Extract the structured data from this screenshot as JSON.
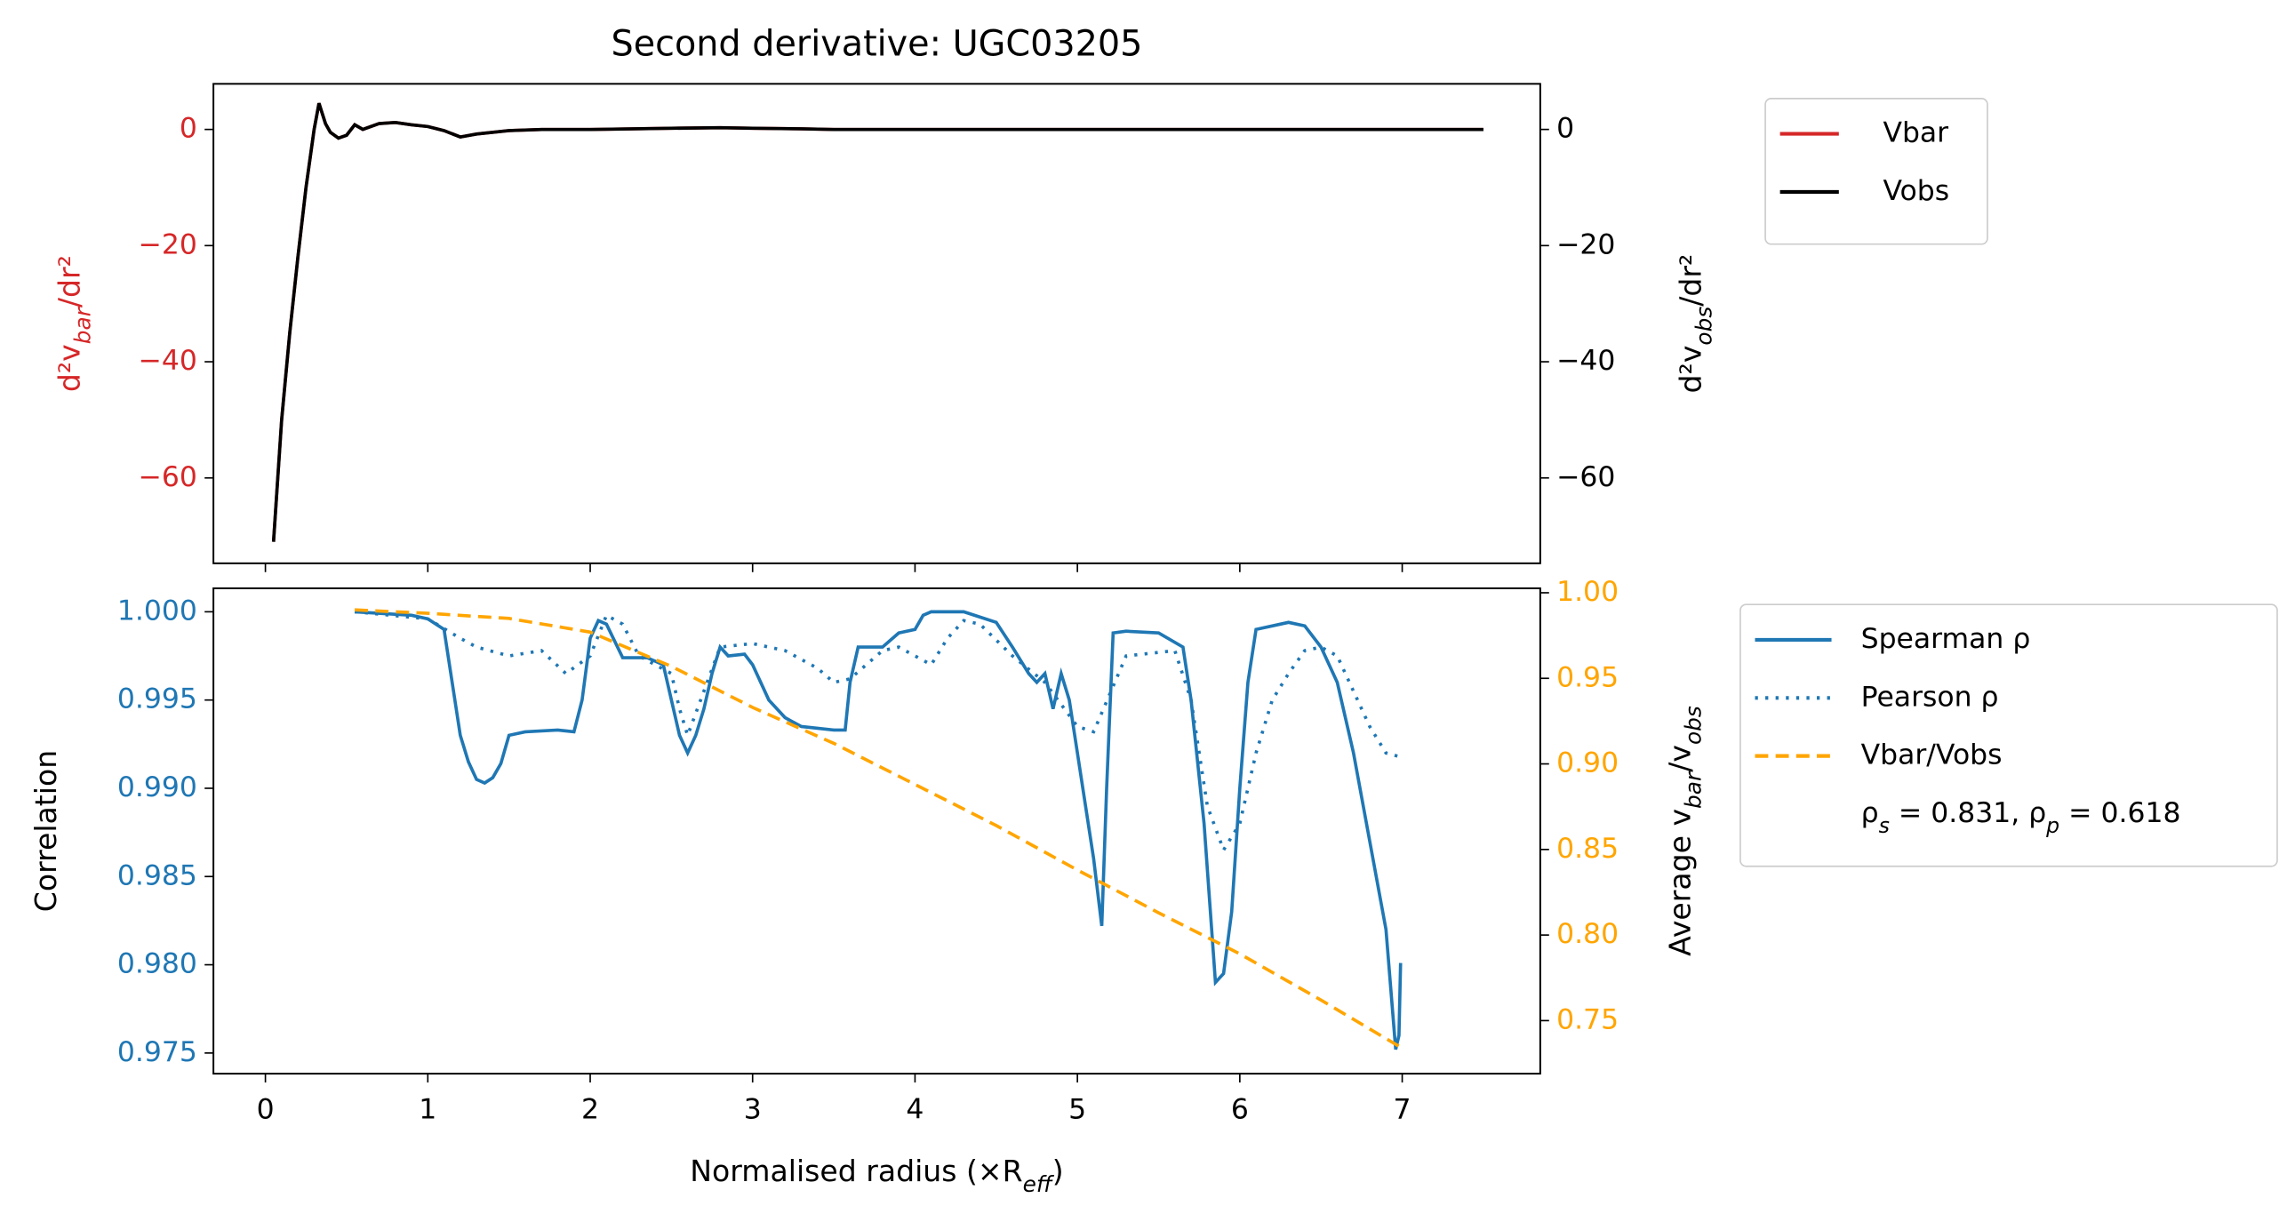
{
  "chart_data": [
    {
      "type": "line",
      "title": "Second derivative: UGC03205",
      "ylabel": "d²v_{bar}/dr²",
      "ylabel_color": "#d62728",
      "y2label": "d²v_{obs}/dr²",
      "xlim": [
        -0.32,
        7.85
      ],
      "xticks": [
        0,
        1,
        2,
        3,
        4,
        5,
        6,
        7
      ],
      "show_xticklabels": false,
      "ylim": [
        -74.7,
        7.85
      ],
      "yticks": [
        {
          "value": -60,
          "label": "−60"
        },
        {
          "value": -40,
          "label": "−40"
        },
        {
          "value": -20,
          "label": "−20"
        },
        0
      ],
      "y2lim": [
        -74.7,
        7.85
      ],
      "y2ticks": [
        {
          "value": -60,
          "label": "−60"
        },
        {
          "value": -40,
          "label": "−40"
        },
        {
          "value": -20,
          "label": "−20"
        },
        0
      ],
      "x": [
        0.05,
        0.1,
        0.15,
        0.2,
        0.25,
        0.3,
        0.33,
        0.37,
        0.4,
        0.45,
        0.5,
        0.55,
        0.6,
        0.7,
        0.8,
        0.9,
        1.0,
        1.1,
        1.2,
        1.3,
        1.5,
        1.7,
        2.0,
        2.5,
        2.8,
        3.0,
        3.3,
        3.5,
        4.0,
        5.0,
        6.0,
        7.0,
        7.5
      ],
      "series": [
        {
          "name": "Vbar",
          "color": "#d62728",
          "style": "solid",
          "values": [
            -71,
            -50,
            -35,
            -22,
            -10,
            0,
            4.5,
            1,
            -0.5,
            -1.5,
            -1,
            0.8,
            0,
            1,
            1.2,
            0.8,
            0.5,
            -0.2,
            -1.3,
            -0.8,
            -0.2,
            0,
            0,
            0.2,
            0.3,
            0.2,
            0.1,
            0,
            0,
            0,
            0,
            0,
            0
          ]
        },
        {
          "name": "Vobs",
          "color": "#000000",
          "style": "solid",
          "axis": "y2",
          "values": [
            -71,
            -50,
            -35,
            -22,
            -10,
            0,
            4.5,
            1,
            -0.5,
            -1.5,
            -1,
            0.8,
            0,
            1,
            1.2,
            0.8,
            0.5,
            -0.2,
            -1.3,
            -0.8,
            -0.2,
            0,
            0,
            0.2,
            0.3,
            0.2,
            0.1,
            0,
            0,
            0,
            0,
            0,
            0
          ]
        }
      ]
    },
    {
      "type": "line",
      "xlabel": "Normalised radius (×R_{eff})",
      "ylabel": "Correlation",
      "ytick_color": "#1f77b4",
      "y2label": "Average v_{bar}/v_{obs}",
      "y2tick_color": "#ffa500",
      "xlim": [
        -0.32,
        7.85
      ],
      "xticks": [
        0,
        1,
        2,
        3,
        4,
        5,
        6,
        7
      ],
      "show_xticklabels": true,
      "ylim": [
        0.97383,
        1.00133
      ],
      "yticks": [
        0.975,
        {
          "value": 0.98,
          "label": "0.980"
        },
        0.985,
        {
          "value": 0.99,
          "label": "0.990"
        },
        0.995,
        {
          "value": 1,
          "label": "1.000"
        }
      ],
      "y2lim": [
        0.719,
        1.0026
      ],
      "y2ticks": [
        0.75,
        {
          "value": 0.8,
          "label": "0.80"
        },
        0.85,
        {
          "value": 0.9,
          "label": "0.90"
        },
        0.95,
        {
          "value": 1,
          "label": "1.00"
        }
      ],
      "series": [
        {
          "name": "Spearman ρ",
          "color": "#1f77b4",
          "style": "solid",
          "x": [
            0.55,
            0.9,
            1.0,
            1.1,
            1.15,
            1.2,
            1.25,
            1.3,
            1.35,
            1.4,
            1.45,
            1.5,
            1.6,
            1.8,
            1.9,
            1.95,
            2.0,
            2.05,
            2.1,
            2.2,
            2.35,
            2.45,
            2.5,
            2.55,
            2.6,
            2.65,
            2.7,
            2.75,
            2.8,
            2.85,
            2.95,
            3.0,
            3.05,
            3.1,
            3.2,
            3.3,
            3.5,
            3.57,
            3.6,
            3.65,
            3.8,
            3.9,
            4.0,
            4.05,
            4.1,
            4.3,
            4.5,
            4.6,
            4.7,
            4.75,
            4.8,
            4.85,
            4.9,
            4.95,
            5.0,
            5.05,
            5.1,
            5.15,
            5.18,
            5.22,
            5.3,
            5.5,
            5.65,
            5.7,
            5.78,
            5.85,
            5.9,
            5.95,
            6.0,
            6.05,
            6.1,
            6.3,
            6.4,
            6.5,
            6.6,
            6.7,
            6.8,
            6.9,
            6.96,
            6.98,
            6.99
          ],
          "values": [
            1.0,
            0.9998,
            0.9996,
            0.999,
            0.996,
            0.993,
            0.9915,
            0.9905,
            0.9903,
            0.9906,
            0.9914,
            0.993,
            0.9932,
            0.9933,
            0.9932,
            0.995,
            0.9985,
            0.9995,
            0.9993,
            0.9974,
            0.9974,
            0.997,
            0.995,
            0.993,
            0.992,
            0.993,
            0.9945,
            0.9965,
            0.998,
            0.9975,
            0.9976,
            0.997,
            0.996,
            0.995,
            0.994,
            0.9935,
            0.9933,
            0.9933,
            0.996,
            0.998,
            0.998,
            0.9988,
            0.999,
            0.9998,
            1.0,
            1.0,
            0.9994,
            0.998,
            0.9965,
            0.996,
            0.9965,
            0.9945,
            0.9965,
            0.995,
            0.992,
            0.989,
            0.986,
            0.9822,
            0.99,
            0.9988,
            0.9989,
            0.9988,
            0.998,
            0.995,
            0.988,
            0.979,
            0.9795,
            0.983,
            0.99,
            0.996,
            0.999,
            0.9994,
            0.9992,
            0.998,
            0.996,
            0.992,
            0.987,
            0.982,
            0.9752,
            0.976,
            0.9801
          ]
        },
        {
          "name": "Pearson ρ",
          "color": "#1f77b4",
          "style": "dotted",
          "x": [
            0.55,
            1.0,
            1.2,
            1.3,
            1.5,
            1.7,
            1.85,
            2.0,
            2.1,
            2.2,
            2.3,
            2.5,
            2.55,
            2.6,
            2.7,
            2.8,
            3.0,
            3.2,
            3.4,
            3.5,
            3.6,
            3.8,
            3.9,
            4.1,
            4.2,
            4.3,
            4.4,
            4.6,
            4.8,
            5.0,
            5.1,
            5.3,
            5.6,
            5.7,
            5.8,
            5.9,
            6.0,
            6.1,
            6.2,
            6.3,
            6.4,
            6.5,
            6.6,
            6.7,
            6.8,
            6.9,
            6.98
          ],
          "values": [
            1.0,
            0.9996,
            0.9985,
            0.998,
            0.9975,
            0.9978,
            0.9965,
            0.9975,
            0.9998,
            0.9993,
            0.9975,
            0.9965,
            0.9945,
            0.993,
            0.9955,
            0.998,
            0.9982,
            0.9978,
            0.9968,
            0.996,
            0.9962,
            0.9978,
            0.998,
            0.997,
            0.9985,
            0.9995,
            0.9993,
            0.9975,
            0.996,
            0.9935,
            0.9932,
            0.9975,
            0.9978,
            0.995,
            0.989,
            0.9865,
            0.988,
            0.992,
            0.995,
            0.9965,
            0.9978,
            0.998,
            0.9975,
            0.9955,
            0.9935,
            0.992,
            0.9918
          ]
        },
        {
          "name": "Vbar/Vobs",
          "color": "#ffa500",
          "style": "dashed",
          "axis": "y2",
          "x": [
            0.55,
            1.0,
            1.5,
            2.0,
            2.5,
            3.0,
            3.5,
            4.0,
            4.5,
            5.0,
            5.5,
            6.0,
            6.5,
            6.98
          ],
          "values": [
            0.99,
            0.988,
            0.985,
            0.977,
            0.957,
            0.933,
            0.912,
            0.888,
            0.864,
            0.838,
            0.813,
            0.789,
            0.762,
            0.735
          ]
        }
      ],
      "annotation": "ρ_{s} = 0.831, ρ_{p} = 0.618"
    }
  ]
}
